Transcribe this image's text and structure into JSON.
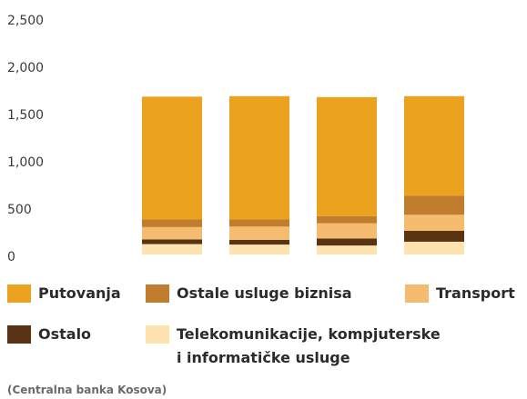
{
  "chart_data": {
    "type": "stacked_bar",
    "categories": [
      null,
      null,
      null,
      null
    ],
    "series": [
      {
        "name": "Telekomunikacije, kompjuterske i informatičke usluge",
        "color": "#fde3b0",
        "values": [
          110,
          105,
          95,
          135
        ]
      },
      {
        "name": "Ostalo",
        "color": "#5a3412",
        "values": [
          50,
          50,
          75,
          115
        ]
      },
      {
        "name": "Transport",
        "color": "#f5bc70",
        "values": [
          130,
          140,
          160,
          170
        ]
      },
      {
        "name": "Ostale usluge biznisa",
        "color": "#c07d2e",
        "values": [
          80,
          75,
          75,
          200
        ]
      },
      {
        "name": "Putovanja",
        "color": "#eaa21f",
        "values": [
          1300,
          1305,
          1260,
          1055
        ]
      }
    ],
    "ylim": [
      0,
      2500
    ],
    "yticks": [
      0,
      500,
      {
        "value": 1000,
        "label": "1,000"
      },
      {
        "value": 1500,
        "label": "1,500"
      },
      {
        "value": 2000,
        "label": "2,000"
      },
      {
        "value": 2500,
        "label": "2,500"
      }
    ],
    "grid": false,
    "source": "(Centralna banka Kosova)"
  }
}
